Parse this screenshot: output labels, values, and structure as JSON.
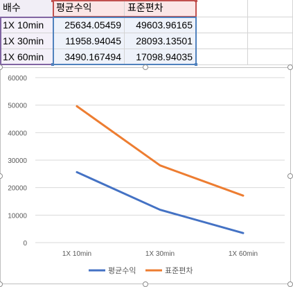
{
  "sheet": {
    "headers": [
      "배수",
      "평균수익",
      "표준편차"
    ],
    "rows": [
      {
        "label": "1X 10min",
        "mean": "25634.05459",
        "std": "49603.96165"
      },
      {
        "label": "1X 30min",
        "mean": "11958.94045",
        "std": "28093.13501"
      },
      {
        "label": "1X 60min",
        "mean": "3490.167494",
        "std": "17098.94035"
      }
    ]
  },
  "chart_data": {
    "type": "line",
    "categories": [
      "1X 10min",
      "1X 30min",
      "1X 60min"
    ],
    "series": [
      {
        "name": "평균수익",
        "values": [
          25634.05459,
          11958.94045,
          3490.167494
        ],
        "color": "#4472c4"
      },
      {
        "name": "표준편차",
        "values": [
          49603.96165,
          28093.13501,
          17098.94035
        ],
        "color": "#ed7d31"
      }
    ],
    "ylim": [
      0,
      60000
    ],
    "yticks": [
      "0",
      "10000",
      "20000",
      "30000",
      "40000",
      "50000",
      "60000"
    ],
    "grid": true,
    "legend": "bottom",
    "title": "",
    "xlabel": "",
    "ylabel": ""
  }
}
